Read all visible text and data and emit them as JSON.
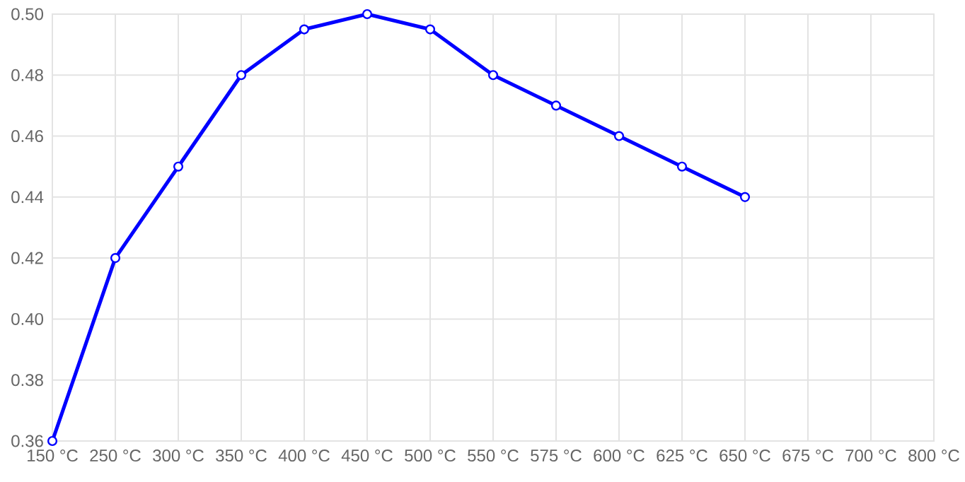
{
  "chart_data": {
    "type": "line",
    "categories": [
      "150 °C",
      "250 °C",
      "300 °C",
      "350 °C",
      "400 °C",
      "450 °C",
      "500 °C",
      "550 °C",
      "575 °C",
      "600 °C",
      "625 °C",
      "650 °C",
      "675 °C",
      "700 °C",
      "800 °C"
    ],
    "series": [
      {
        "color": "#0000ff",
        "values": [
          0.36,
          0.42,
          0.45,
          0.48,
          0.495,
          0.5,
          0.495,
          0.48,
          0.47,
          0.46,
          0.45,
          0.44,
          null,
          null,
          null
        ]
      }
    ],
    "ylim": [
      0.36,
      0.5
    ],
    "yticks": [
      {
        "value": 0.36,
        "label": "0.36"
      },
      {
        "value": 0.38,
        "label": "0.38"
      },
      {
        "value": 0.4,
        "label": "0.40"
      },
      {
        "value": 0.42,
        "label": "0.42"
      },
      {
        "value": 0.44,
        "label": "0.44"
      },
      {
        "value": 0.46,
        "label": "0.46"
      },
      {
        "value": 0.48,
        "label": "0.48"
      },
      {
        "value": 0.5,
        "label": "0.50"
      }
    ],
    "grid": true,
    "marker": "circle",
    "line_style": "solid"
  }
}
